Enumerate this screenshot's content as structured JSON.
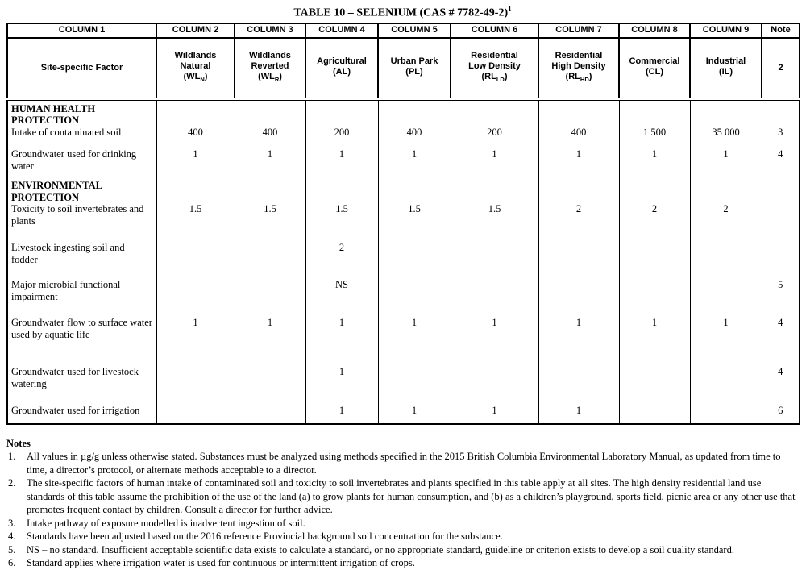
{
  "title": {
    "text": "TABLE 10 – SELENIUM (CAS # 7782-49-2)",
    "footnote_ref": "1"
  },
  "table": {
    "column_headers": [
      "COLUMN 1",
      "COLUMN 2",
      "COLUMN 3",
      "COLUMN 4",
      "COLUMN 5",
      "COLUMN 6",
      "COLUMN 7",
      "COLUMN 8",
      "COLUMN 9",
      "Note"
    ],
    "factor_header": "Site-specific Factor",
    "note_header_value": "2",
    "land_uses": [
      {
        "name_lines": [
          "Wildlands",
          "Natural"
        ],
        "abbr": "WL",
        "abbr_sub": "N"
      },
      {
        "name_lines": [
          "Wildlands",
          "Reverted"
        ],
        "abbr": "WL",
        "abbr_sub": "R"
      },
      {
        "name_lines": [
          "Agricultural"
        ],
        "abbr": "AL",
        "abbr_sub": ""
      },
      {
        "name_lines": [
          "Urban Park"
        ],
        "abbr": "PL",
        "abbr_sub": ""
      },
      {
        "name_lines": [
          "Residential",
          "Low Density"
        ],
        "abbr": "RL",
        "abbr_sub": "LD"
      },
      {
        "name_lines": [
          "Residential",
          "High Density"
        ],
        "abbr": "RL",
        "abbr_sub": "HD"
      },
      {
        "name_lines": [
          "Commercial"
        ],
        "abbr": "CL",
        "abbr_sub": ""
      },
      {
        "name_lines": [
          "Industrial"
        ],
        "abbr": "IL",
        "abbr_sub": ""
      }
    ],
    "sections": [
      {
        "heading": "HUMAN HEALTH PROTECTION",
        "rows": [
          {
            "factor": "Intake of contaminated soil",
            "values": [
              "400",
              "400",
              "200",
              "400",
              "200",
              "400",
              "1 500",
              "35 000"
            ],
            "note": "3"
          },
          {
            "factor": "Groundwater used for drinking water",
            "values": [
              "1",
              "1",
              "1",
              "1",
              "1",
              "1",
              "1",
              "1"
            ],
            "note": "4"
          }
        ]
      },
      {
        "heading": "ENVIRONMENTAL PROTECTION",
        "rows": [
          {
            "factor": "Toxicity to soil invertebrates and plants",
            "values": [
              "1.5",
              "1.5",
              "1.5",
              "1.5",
              "1.5",
              "2",
              "2",
              "2"
            ],
            "note": ""
          },
          {
            "factor": "Livestock ingesting soil and fodder",
            "values": [
              "",
              "",
              "2",
              "",
              "",
              "",
              "",
              ""
            ],
            "note": ""
          },
          {
            "factor": "Major microbial functional impairment",
            "values": [
              "",
              "",
              "NS",
              "",
              "",
              "",
              "",
              ""
            ],
            "note": "5"
          },
          {
            "factor": "Groundwater flow to surface water used by aquatic life",
            "values": [
              "1",
              "1",
              "1",
              "1",
              "1",
              "1",
              "1",
              "1"
            ],
            "note": "4"
          },
          {
            "factor": "Groundwater used for livestock watering",
            "values": [
              "",
              "",
              "1",
              "",
              "",
              "",
              "",
              ""
            ],
            "note": "4"
          },
          {
            "factor": "Groundwater used for irrigation",
            "values": [
              "",
              "",
              "1",
              "1",
              "1",
              "1",
              "",
              ""
            ],
            "note": "6"
          }
        ]
      }
    ]
  },
  "notes": {
    "heading": "Notes",
    "items": [
      {
        "num": "1.",
        "text": "All values in µg/g unless otherwise stated.  Substances must be analyzed using methods specified in the 2015 British Columbia Environmental Laboratory Manual, as updated from time to time, a director’s protocol, or alternate methods acceptable to a director."
      },
      {
        "num": "2.",
        "text": "The site-specific factors of human intake of contaminated soil and toxicity to soil invertebrates and plants specified in this table apply at all sites. The high density residential land use standards of this table assume the prohibition of the use of the land (a) to grow plants for human consumption, and (b) as a children’s playground, sports field, picnic area or any other use that promotes frequent contact by children. Consult a director for further advice."
      },
      {
        "num": "3.",
        "text": "Intake pathway of exposure modelled is inadvertent ingestion of soil."
      },
      {
        "num": "4.",
        "text": "Standards have been adjusted based on the 2016 reference Provincial background soil concentration for the substance."
      },
      {
        "num": "5.",
        "text": "NS – no standard. Insufficient acceptable scientific data exists to calculate a standard, or no appropriate standard, guideline or criterion exists to develop a soil quality standard."
      },
      {
        "num": "6.",
        "text": "Standard applies where irrigation water is used for continuous or intermittent irrigation of crops."
      }
    ]
  }
}
